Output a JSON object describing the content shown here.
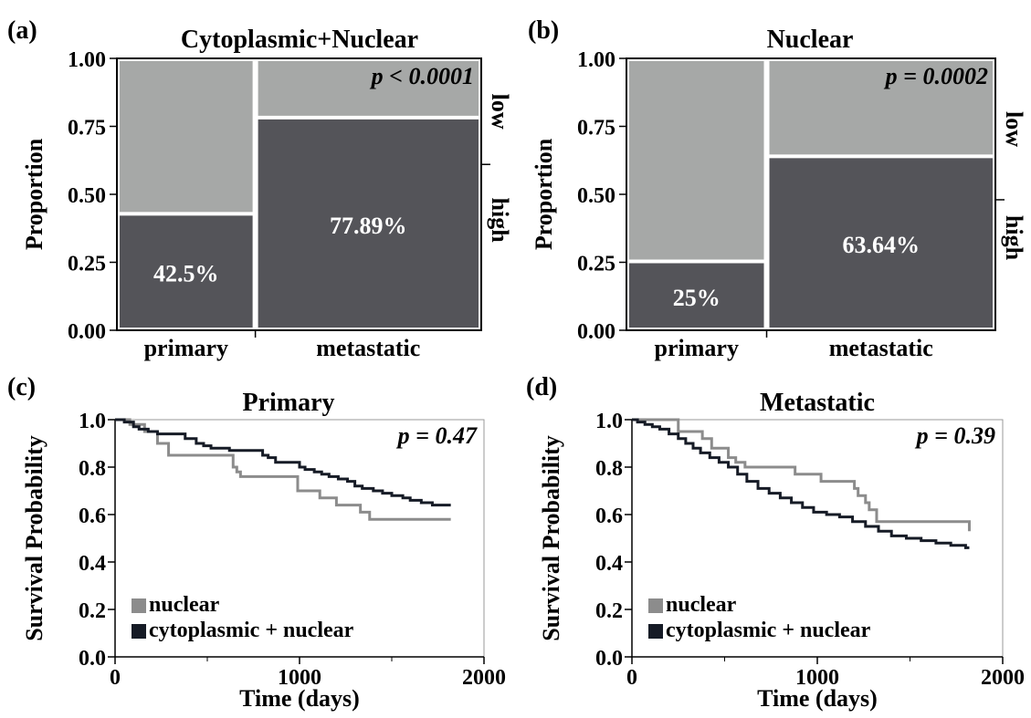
{
  "colors": {
    "dark": "#545459",
    "light": "#a6a8a7",
    "km_nuclear": "#8c8c8c",
    "km_cyto": "#161b26"
  },
  "chart_data": [
    {
      "panel": "(a)",
      "type": "mosaic",
      "title": "Cytoplasmic+Nuclear",
      "ylabel": "Proportion",
      "ylim": [
        0,
        1
      ],
      "yticks": [
        "0.00",
        "0.25",
        "0.50",
        "0.75",
        "1.00"
      ],
      "categories": [
        "primary",
        "metastatic"
      ],
      "category_widths": [
        0.38,
        0.62
      ],
      "high_values": [
        0.425,
        0.7789
      ],
      "high_labels": [
        "42.5%",
        "77.89%"
      ],
      "legend": [
        "low",
        "high"
      ],
      "legend_boundary": 0.61,
      "p_value": "p < 0.0001"
    },
    {
      "panel": "(b)",
      "type": "mosaic",
      "title": "Nuclear",
      "ylabel": "Proportion",
      "ylim": [
        0,
        1
      ],
      "yticks": [
        "0.00",
        "0.25",
        "0.50",
        "0.75",
        "1.00"
      ],
      "categories": [
        "primary",
        "metastatic"
      ],
      "category_widths": [
        0.38,
        0.62
      ],
      "high_values": [
        0.25,
        0.6364
      ],
      "high_labels": [
        "25%",
        "63.64%"
      ],
      "legend": [
        "low",
        "high"
      ],
      "legend_boundary": 0.48,
      "p_value": "p = 0.0002"
    },
    {
      "panel": "(c)",
      "type": "line",
      "title": "Primary",
      "xlabel": "Time (days)",
      "ylabel": "Survival Probability",
      "xlim": [
        0,
        2000
      ],
      "ylim": [
        0,
        1
      ],
      "xticks": [
        "0",
        "1000",
        "2000"
      ],
      "yticks": [
        "0.0",
        "0.2",
        "0.4",
        "0.6",
        "0.8",
        "1.0"
      ],
      "p_value": "p = 0.47",
      "series": [
        {
          "name": "nuclear",
          "color": "#8c8c8c",
          "x": [
            0,
            80,
            160,
            230,
            290,
            580,
            640,
            660,
            680,
            900,
            990,
            1070,
            1110,
            1150,
            1200,
            1260,
            1330,
            1380,
            1820
          ],
          "y": [
            1.0,
            0.98,
            0.95,
            0.9,
            0.85,
            0.85,
            0.8,
            0.78,
            0.76,
            0.76,
            0.7,
            0.7,
            0.67,
            0.67,
            0.64,
            0.64,
            0.61,
            0.58,
            0.58
          ]
        },
        {
          "name": "cytoplasmic + nuclear",
          "color": "#161b26",
          "x": [
            0,
            50,
            100,
            130,
            180,
            230,
            380,
            440,
            480,
            520,
            620,
            800,
            830,
            870,
            1000,
            1030,
            1080,
            1120,
            1160,
            1210,
            1260,
            1300,
            1340,
            1400,
            1450,
            1500,
            1560,
            1600,
            1660,
            1720,
            1800,
            1820
          ],
          "y": [
            1.0,
            0.99,
            0.97,
            0.96,
            0.95,
            0.94,
            0.92,
            0.9,
            0.89,
            0.88,
            0.87,
            0.85,
            0.84,
            0.82,
            0.8,
            0.79,
            0.78,
            0.77,
            0.76,
            0.75,
            0.74,
            0.72,
            0.71,
            0.7,
            0.69,
            0.68,
            0.67,
            0.66,
            0.65,
            0.64,
            0.64,
            0.64
          ]
        }
      ]
    },
    {
      "panel": "(d)",
      "type": "line",
      "title": "Metastatic",
      "xlabel": "Time (days)",
      "ylabel": "Survival Probability",
      "xlim": [
        0,
        2000
      ],
      "ylim": [
        0,
        1
      ],
      "xticks": [
        "0",
        "1000",
        "2000"
      ],
      "yticks": [
        "0.0",
        "0.2",
        "0.4",
        "0.6",
        "0.8",
        "1.0"
      ],
      "p_value": "p = 0.39",
      "series": [
        {
          "name": "nuclear",
          "color": "#8c8c8c",
          "x": [
            0,
            210,
            250,
            380,
            430,
            520,
            560,
            610,
            800,
            880,
            980,
            1020,
            1160,
            1200,
            1220,
            1260,
            1280,
            1320,
            1750,
            1820
          ],
          "y": [
            1.0,
            1.0,
            0.95,
            0.92,
            0.88,
            0.84,
            0.82,
            0.8,
            0.8,
            0.77,
            0.77,
            0.74,
            0.74,
            0.71,
            0.68,
            0.65,
            0.62,
            0.57,
            0.57,
            0.53
          ]
        },
        {
          "name": "cytoplasmic + nuclear",
          "color": "#161b26",
          "x": [
            0,
            30,
            70,
            110,
            150,
            200,
            250,
            290,
            330,
            370,
            420,
            470,
            520,
            570,
            620,
            680,
            740,
            800,
            860,
            920,
            980,
            1050,
            1120,
            1190,
            1260,
            1330,
            1400,
            1480,
            1560,
            1640,
            1720,
            1800,
            1820
          ],
          "y": [
            1.0,
            0.99,
            0.98,
            0.97,
            0.96,
            0.94,
            0.92,
            0.9,
            0.88,
            0.86,
            0.84,
            0.82,
            0.8,
            0.77,
            0.74,
            0.71,
            0.69,
            0.67,
            0.65,
            0.63,
            0.61,
            0.6,
            0.59,
            0.57,
            0.55,
            0.53,
            0.51,
            0.5,
            0.49,
            0.48,
            0.47,
            0.46,
            0.46
          ]
        }
      ]
    }
  ]
}
